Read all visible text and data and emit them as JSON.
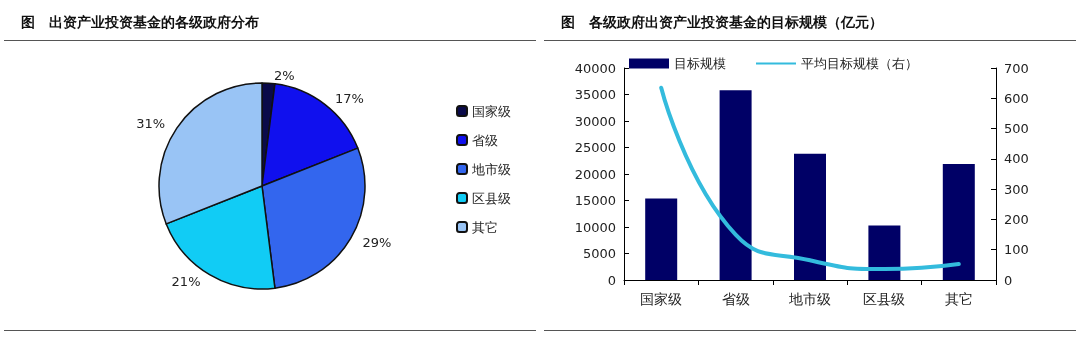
{
  "chart_data": [
    {
      "type": "pie",
      "title": "图　出资产业投资基金的各级政府分布",
      "categories": [
        "国家级",
        "省级",
        "地市级",
        "区县级",
        "其它"
      ],
      "values": [
        2,
        17,
        29,
        21,
        31
      ],
      "colors": [
        "#0a0a4a",
        "#1010ee",
        "#3366ee",
        "#11ccf5",
        "#99c4f5"
      ],
      "value_labels": [
        "2%",
        "17%",
        "29%",
        "21%",
        "31%"
      ],
      "legend": "right"
    },
    {
      "type": "bar",
      "title": "图　各级政府出资产业投资基金的目标规模（亿元）",
      "categories": [
        "国家级",
        "省级",
        "地市级",
        "区县级",
        "其它"
      ],
      "series": [
        {
          "name": "目标规模",
          "color": "#000066",
          "values": [
            15400,
            35800,
            23800,
            10300,
            21900
          ]
        },
        {
          "name": "平均目标规模（右）",
          "type": "line",
          "axis": "y2",
          "color": "#33bbdd",
          "values": [
            635,
            150,
            65,
            36,
            53
          ]
        }
      ],
      "ylim": [
        0,
        40000
      ],
      "yticks": [
        0,
        5000,
        10000,
        15000,
        20000,
        25000,
        30000,
        35000,
        40000
      ],
      "y2lim": [
        0,
        700
      ],
      "y2ticks": [
        0,
        100,
        200,
        300,
        400,
        500,
        600,
        700
      ],
      "legend": "top",
      "marker": "none",
      "line_style": "solid",
      "grid": false
    }
  ]
}
